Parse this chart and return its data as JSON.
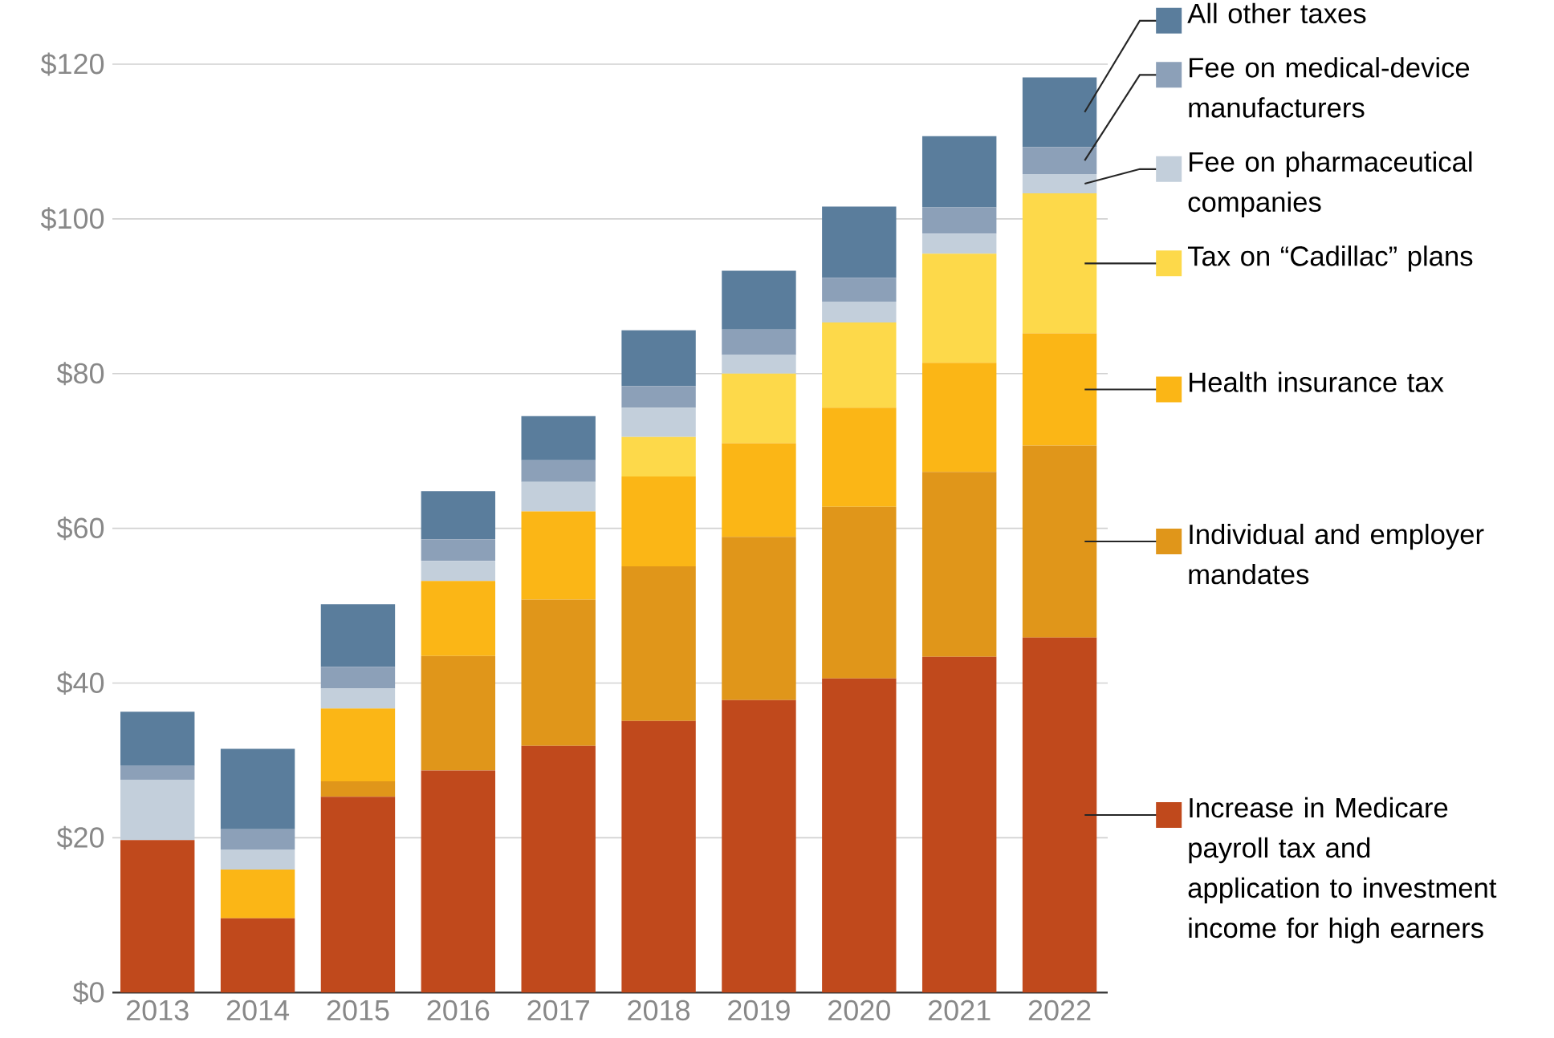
{
  "chart_data": {
    "type": "bar",
    "stacked": true,
    "categories": [
      "2013",
      "2014",
      "2015",
      "2016",
      "2017",
      "2018",
      "2019",
      "2020",
      "2021",
      "2022"
    ],
    "series": [
      {
        "name": "Increase in Medicare payroll tax and application to investment income for high earners",
        "color": "#c0491c",
        "values": [
          19.7,
          9.6,
          25.3,
          28.7,
          31.9,
          35.1,
          37.8,
          40.6,
          43.4,
          45.9
        ]
      },
      {
        "name": "Individual and employer mandates",
        "color": "#e0961a",
        "values": [
          0,
          0,
          2.0,
          14.8,
          18.9,
          20.0,
          21.1,
          22.2,
          23.9,
          24.8
        ]
      },
      {
        "name": "Health insurance tax",
        "color": "#fbb616",
        "values": [
          0,
          6.3,
          9.4,
          9.7,
          11.4,
          11.6,
          12.1,
          12.8,
          14.1,
          14.5
        ]
      },
      {
        "name": "Tax on “Cadillac” plans",
        "color": "#fdd94a",
        "values": [
          0,
          0,
          0,
          0,
          0,
          5.1,
          9.0,
          11.0,
          14.1,
          18.1
        ]
      },
      {
        "name": "Fee on pharmaceutical companies",
        "color": "#c3cfdb",
        "values": [
          7.8,
          2.6,
          2.6,
          2.6,
          3.8,
          3.8,
          2.4,
          2.7,
          2.6,
          2.5
        ]
      },
      {
        "name": "Fee on medical-device manufacturers",
        "color": "#8ca0b8",
        "values": [
          1.8,
          2.6,
          2.8,
          2.8,
          2.8,
          2.8,
          3.3,
          3.1,
          3.4,
          3.5
        ]
      },
      {
        "name": "All other taxes",
        "color": "#5a7d9c",
        "values": [
          7.0,
          10.4,
          8.1,
          6.2,
          5.7,
          7.2,
          7.6,
          9.2,
          9.2,
          9.0
        ]
      }
    ],
    "ylim": [
      0,
      120
    ],
    "yticks": [
      {
        "value": 0,
        "label": "$0"
      },
      {
        "value": 20,
        "label": "$20"
      },
      {
        "value": 40,
        "label": "$40"
      },
      {
        "value": 60,
        "label": "$60"
      },
      {
        "value": 80,
        "label": "$80"
      },
      {
        "value": 100,
        "label": "$100"
      },
      {
        "value": 120,
        "label": "$120"
      }
    ],
    "grid": "y",
    "legend": "right"
  }
}
